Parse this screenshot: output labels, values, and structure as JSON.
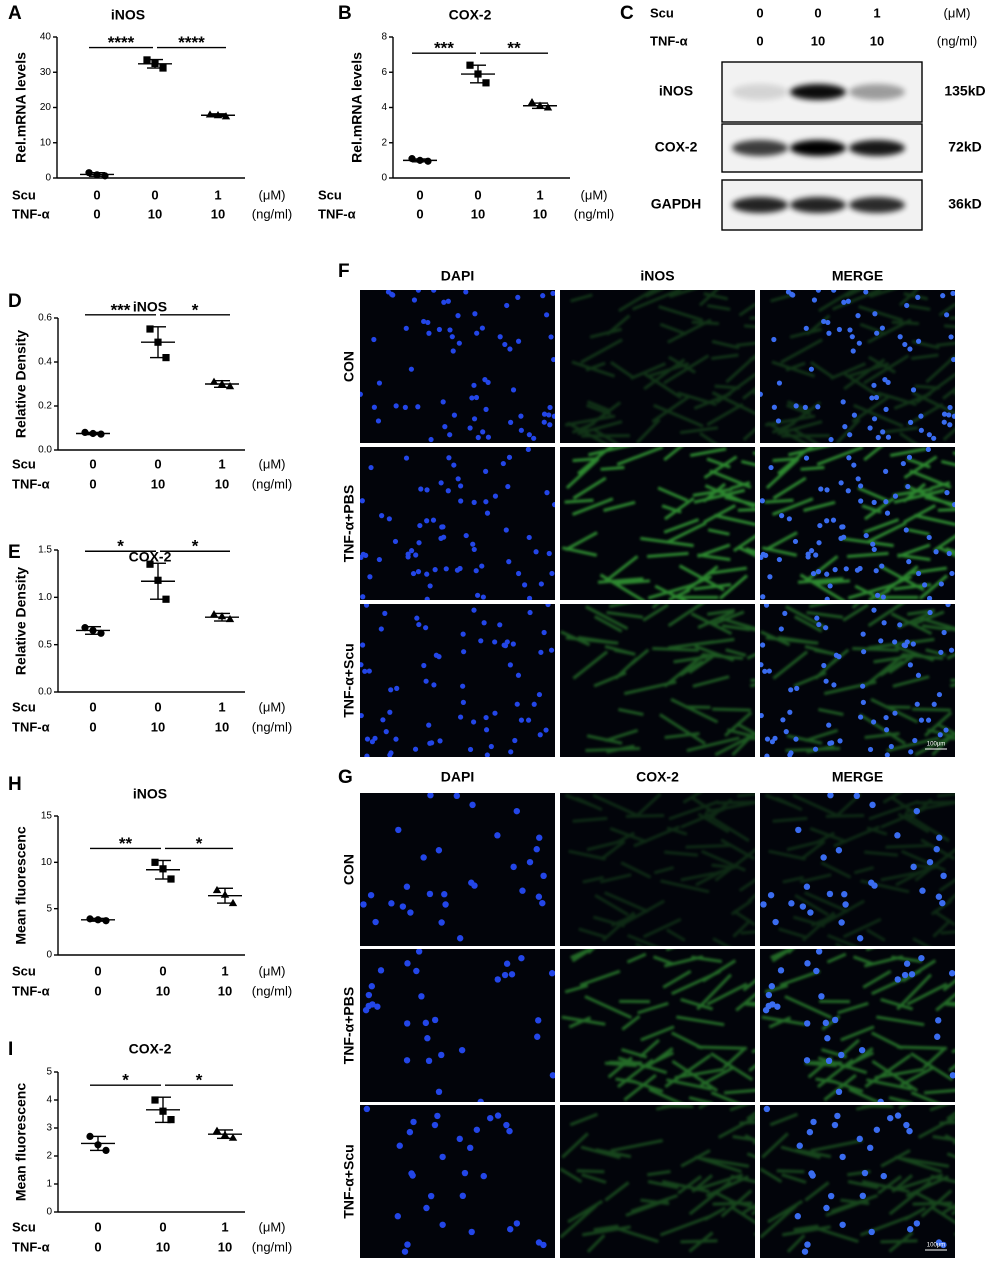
{
  "chart_data": [
    {
      "type": "dot_plot",
      "panel": "A",
      "title": "iNOS",
      "y_label": "Rel.mRNA levels",
      "ylim": [
        0,
        40
      ],
      "yticks": [
        0,
        10,
        20,
        30,
        40
      ],
      "groups": [
        {
          "values": [
            1.5,
            0.9,
            0.6
          ],
          "mean": 1.0,
          "sd": 0.5
        },
        {
          "values": [
            33.5,
            32.5,
            31.2
          ],
          "mean": 32.4,
          "sd": 1.2
        },
        {
          "values": [
            18.0,
            17.8,
            17.5
          ],
          "mean": 17.8,
          "sd": 0.4
        }
      ],
      "significance": [
        "****",
        "****"
      ],
      "conditions": [
        {
          "name": "Scu",
          "values": [
            0,
            0,
            1
          ],
          "unit": "(μM)"
        },
        {
          "name": "TNF-α",
          "values": [
            0,
            10,
            10
          ],
          "unit": "(ng/ml)"
        }
      ]
    },
    {
      "type": "dot_plot",
      "panel": "B",
      "title": "COX-2",
      "y_label": "Rel.mRNA levels",
      "ylim": [
        0,
        8
      ],
      "yticks": [
        0,
        2,
        4,
        6,
        8
      ],
      "groups": [
        {
          "values": [
            1.1,
            1.0,
            0.95
          ],
          "mean": 1.0,
          "sd": 0.08
        },
        {
          "values": [
            6.4,
            5.9,
            5.4
          ],
          "mean": 5.9,
          "sd": 0.5
        },
        {
          "values": [
            4.3,
            4.1,
            4.0
          ],
          "mean": 4.1,
          "sd": 0.15
        }
      ],
      "significance": [
        "***",
        "**"
      ],
      "conditions": [
        {
          "name": "Scu",
          "values": [
            0,
            0,
            1
          ],
          "unit": "(μM)"
        },
        {
          "name": "TNF-α",
          "values": [
            0,
            10,
            10
          ],
          "unit": "(ng/ml)"
        }
      ]
    },
    {
      "type": "dot_plot",
      "panel": "D",
      "title": "iNOS",
      "y_label": "Relative Density",
      "ylim": [
        0,
        0.6
      ],
      "yticks": [
        {
          "value": 0,
          "label": "0.0"
        },
        0.2,
        0.4,
        0.6
      ],
      "groups": [
        {
          "values": [
            0.08,
            0.075,
            0.072
          ],
          "mean": 0.075,
          "sd": 0.005
        },
        {
          "values": [
            0.55,
            0.49,
            0.42
          ],
          "mean": 0.49,
          "sd": 0.07
        },
        {
          "values": [
            0.31,
            0.3,
            0.29
          ],
          "mean": 0.3,
          "sd": 0.015
        }
      ],
      "significance": [
        "***",
        "*"
      ],
      "conditions": [
        {
          "name": "Scu",
          "values": [
            0,
            0,
            1
          ],
          "unit": "(μM)"
        },
        {
          "name": "TNF-α",
          "values": [
            0,
            10,
            10
          ],
          "unit": "(ng/ml)"
        }
      ]
    },
    {
      "type": "dot_plot",
      "panel": "E",
      "title": "COX-2",
      "y_label": "Relative Density",
      "ylim": [
        0,
        1.5
      ],
      "yticks": [
        {
          "value": 0,
          "label": "0.0"
        },
        0.5,
        {
          "value": 1,
          "label": "1.0"
        },
        1.5
      ],
      "groups": [
        {
          "values": [
            0.68,
            0.65,
            0.62
          ],
          "mean": 0.65,
          "sd": 0.04
        },
        {
          "values": [
            1.35,
            1.18,
            0.98
          ],
          "mean": 1.17,
          "sd": 0.19
        },
        {
          "values": [
            0.82,
            0.8,
            0.77
          ],
          "mean": 0.79,
          "sd": 0.04
        }
      ],
      "significance": [
        "*",
        "*"
      ],
      "conditions": [
        {
          "name": "Scu",
          "values": [
            0,
            0,
            1
          ],
          "unit": "(μM)"
        },
        {
          "name": "TNF-α",
          "values": [
            0,
            10,
            10
          ],
          "unit": "(ng/ml)"
        }
      ]
    },
    {
      "type": "dot_plot",
      "panel": "H",
      "title": "iNOS",
      "y_label": "Mean fluorescenc",
      "ylim": [
        0,
        15
      ],
      "yticks": [
        0,
        5,
        10,
        15
      ],
      "groups": [
        {
          "values": [
            3.9,
            3.8,
            3.7
          ],
          "mean": 3.8,
          "sd": 0.15
        },
        {
          "values": [
            10.0,
            9.3,
            8.2
          ],
          "mean": 9.2,
          "sd": 1.0
        },
        {
          "values": [
            7.0,
            6.5,
            5.6
          ],
          "mean": 6.4,
          "sd": 0.8
        }
      ],
      "significance": [
        "**",
        "*"
      ],
      "conditions": [
        {
          "name": "Scu",
          "values": [
            0,
            0,
            1
          ],
          "unit": "(μM)"
        },
        {
          "name": "TNF-α",
          "values": [
            0,
            10,
            10
          ],
          "unit": "(ng/ml)"
        }
      ]
    },
    {
      "type": "dot_plot",
      "panel": "I",
      "title": "COX-2",
      "y_label": "Mean fluorescenc",
      "ylim": [
        0,
        5
      ],
      "yticks": [
        0,
        1,
        2,
        3,
        4,
        5
      ],
      "groups": [
        {
          "values": [
            2.7,
            2.4,
            2.2
          ],
          "mean": 2.45,
          "sd": 0.25
        },
        {
          "values": [
            4.0,
            3.6,
            3.3
          ],
          "mean": 3.65,
          "sd": 0.45
        },
        {
          "values": [
            2.9,
            2.75,
            2.65
          ],
          "mean": 2.78,
          "sd": 0.15
        }
      ],
      "significance": [
        "*",
        "*"
      ],
      "conditions": [
        {
          "name": "Scu",
          "values": [
            0,
            0,
            1
          ],
          "unit": "(μM)"
        },
        {
          "name": "TNF-α",
          "values": [
            0,
            10,
            10
          ],
          "unit": "(ng/ml)"
        }
      ]
    }
  ],
  "blot": {
    "panel": "C",
    "conditions": [
      {
        "name": "Scu",
        "values": [
          0,
          0,
          1
        ],
        "unit": "(μM)"
      },
      {
        "name": "TNF-α",
        "values": [
          0,
          10,
          10
        ],
        "unit": "(ng/ml)"
      }
    ],
    "rows": [
      {
        "name": "iNOS",
        "size": "135kD"
      },
      {
        "name": "COX-2",
        "size": "72kD"
      },
      {
        "name": "GAPDH",
        "size": "36kD"
      }
    ]
  },
  "if_panels": [
    {
      "panel": "F",
      "columns": [
        "DAPI",
        "iNOS",
        "MERGE"
      ],
      "rows": [
        "CON",
        "TNF-α+PBS",
        "TNF-α+Scu"
      ],
      "scale_bar": "100μm"
    },
    {
      "panel": "G",
      "columns": [
        "DAPI",
        "COX-2",
        "MERGE"
      ],
      "rows": [
        "CON",
        "TNF-α+PBS",
        "TNF-α+Scu"
      ],
      "scale_bar": "100μm"
    }
  ]
}
